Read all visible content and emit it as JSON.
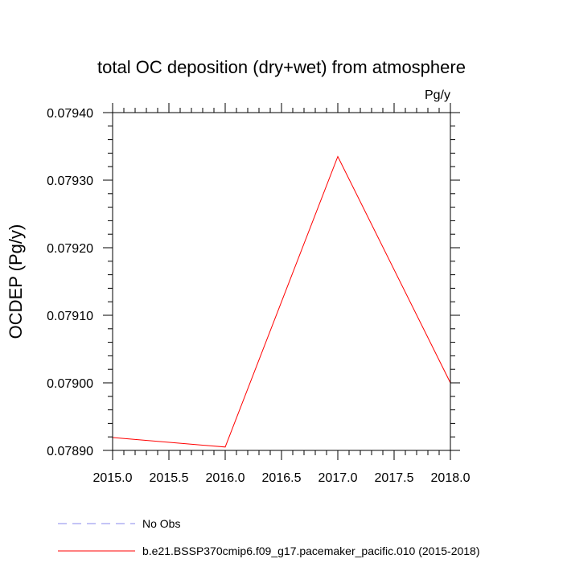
{
  "chart_data": {
    "type": "line",
    "title": "total OC deposition (dry+wet) from atmosphere",
    "units_label": "Pg/y",
    "ylabel": "OCDEP  (Pg/y)",
    "xlabel": "",
    "xlim": [
      2015.0,
      2018.0
    ],
    "ylim": [
      0.0789,
      0.0794
    ],
    "x_ticks": [
      2015.0,
      2015.5,
      2016.0,
      2016.5,
      2017.0,
      2017.5,
      2018.0
    ],
    "x_tick_labels": [
      "2015.0",
      "2015.5",
      "2016.0",
      "2016.5",
      "2017.0",
      "2017.5",
      "2018.0"
    ],
    "y_ticks": [
      0.0789,
      0.079,
      0.0791,
      0.0792,
      0.0793,
      0.0794
    ],
    "y_tick_labels": [
      "0.07890",
      "0.07900",
      "0.07910",
      "0.07920",
      "0.07930",
      "0.07940"
    ],
    "grid": false,
    "legend_position": "bottom",
    "series": [
      {
        "name": "No Obs",
        "color": "#8888ee",
        "dash": "dashed",
        "x": [],
        "y": []
      },
      {
        "name": "b.e21.BSSP370cmip6.f09_g17.pacemaker_pacific.010 (2015-2018)",
        "color": "#ff0000",
        "dash": "solid",
        "x": [
          2015.0,
          2016.0,
          2017.0,
          2018.0
        ],
        "y": [
          0.078919,
          0.078905,
          0.079335,
          0.079
        ]
      }
    ]
  }
}
